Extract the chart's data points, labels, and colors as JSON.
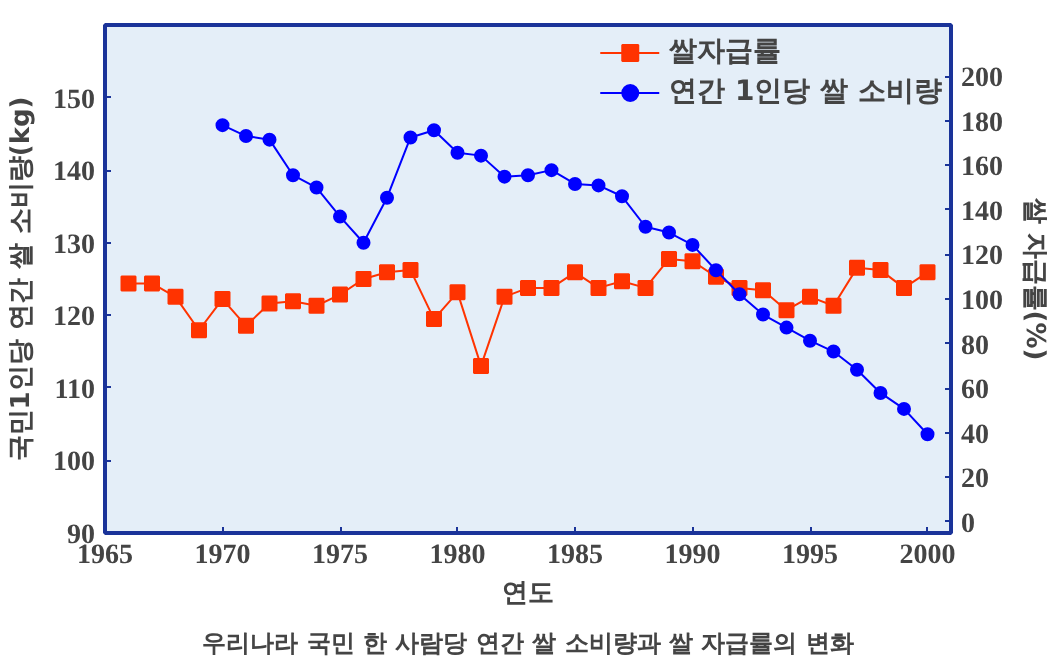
{
  "chart_data": {
    "type": "line",
    "title": "우리나라 국민 한 사람당 연간 쌀 소비량과 쌀 자급률의 변화",
    "xlabel": "연도",
    "ylabel": "국민1인당 연간 쌀 소비량(kg)",
    "y2label": "쌀 자급률(%)",
    "xlim": [
      1965,
      2001
    ],
    "xticks": [
      1965,
      1970,
      1975,
      1980,
      1985,
      1990,
      1995,
      2000
    ],
    "ylim": [
      90,
      160
    ],
    "yticks": [
      90,
      100,
      110,
      120,
      130,
      140,
      150
    ],
    "y2lim": [
      -5,
      223
    ],
    "y2ticks": [
      0,
      20,
      40,
      60,
      80,
      100,
      120,
      140,
      160,
      180,
      200
    ],
    "legend": "top right",
    "grid": false,
    "series": [
      {
        "name": "쌀자급률",
        "color": "#ff3300",
        "marker": "square",
        "axis": "y2",
        "x": [
          1966,
          1967,
          1968,
          1969,
          1970,
          1971,
          1972,
          1973,
          1974,
          1975,
          1976,
          1977,
          1978,
          1979,
          1980,
          1981,
          1982,
          1983,
          1984,
          1985,
          1986,
          1987,
          1988,
          1989,
          1990,
          1991,
          1992,
          1993,
          1994,
          1995,
          1996,
          1997,
          1998,
          1999,
          2000
        ],
        "values": [
          107,
          107,
          101,
          86,
          100,
          88,
          98,
          99,
          97,
          102,
          109,
          112,
          113,
          91,
          103,
          70,
          101,
          105,
          105,
          112,
          105,
          108,
          105,
          118,
          117,
          110,
          105,
          104,
          95,
          101,
          97,
          114,
          113,
          105,
          112
        ]
      },
      {
        "name": "연간 1인당 쌀 소비량",
        "color": "#0000ff",
        "marker": "circle",
        "x": [
          1970,
          1971,
          1972,
          1973,
          1974,
          1975,
          1976,
          1977,
          1978,
          1979,
          1980,
          1981,
          1982,
          1983,
          1984,
          1985,
          1986,
          1987,
          1988,
          1989,
          1990,
          1991,
          1992,
          1993,
          1994,
          1995,
          1996,
          1997,
          1998,
          1999,
          2000
        ],
        "values": [
          146.2,
          144.7,
          144.2,
          139.3,
          137.6,
          133.6,
          130.0,
          136.2,
          144.5,
          145.5,
          142.4,
          142.0,
          139.1,
          139.3,
          140.0,
          138.1,
          137.9,
          136.4,
          132.2,
          131.4,
          129.7,
          126.2,
          122.9,
          120.1,
          118.3,
          116.5,
          115.0,
          112.5,
          109.3,
          107.1,
          103.6
        ]
      }
    ]
  }
}
